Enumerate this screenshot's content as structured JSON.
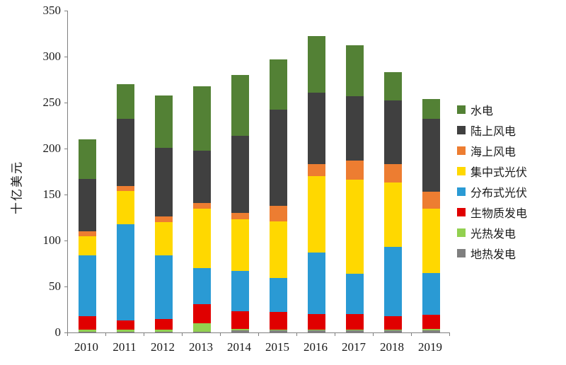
{
  "chart_data": {
    "type": "bar",
    "stacked": true,
    "title": "",
    "ylabel": "十亿美元",
    "ylim": [
      0,
      350
    ],
    "yticks": [
      0,
      50,
      100,
      150,
      200,
      250,
      300,
      350
    ],
    "categories": [
      "2010",
      "2011",
      "2012",
      "2013",
      "2014",
      "2015",
      "2016",
      "2017",
      "2018",
      "2019"
    ],
    "series": [
      {
        "name": "地热发电",
        "color": "#7f7f7f",
        "values": [
          1,
          1,
          1,
          1,
          2,
          2,
          2,
          2,
          2,
          2
        ]
      },
      {
        "name": "光热发电",
        "color": "#92d050",
        "values": [
          2,
          2,
          2,
          9,
          2,
          1,
          1,
          1,
          1,
          2
        ]
      },
      {
        "name": "生物质发电",
        "color": "#e00000",
        "values": [
          15,
          10,
          12,
          21,
          19,
          19,
          17,
          17,
          15,
          15
        ]
      },
      {
        "name": "分布式光伏",
        "color": "#2a9ad4",
        "values": [
          66,
          105,
          69,
          39,
          44,
          37,
          67,
          44,
          75,
          46
        ]
      },
      {
        "name": "集中式光伏",
        "color": "#ffd800",
        "values": [
          21,
          36,
          36,
          65,
          56,
          62,
          83,
          102,
          70,
          70
        ]
      },
      {
        "name": "海上风电",
        "color": "#ed7d31",
        "values": [
          5,
          5,
          6,
          6,
          7,
          17,
          13,
          21,
          20,
          18
        ]
      },
      {
        "name": "陆上风电",
        "color": "#404040",
        "values": [
          57,
          73,
          75,
          57,
          84,
          104,
          78,
          70,
          69,
          79
        ]
      },
      {
        "name": "水电",
        "color": "#538135",
        "values": [
          43,
          38,
          57,
          70,
          66,
          55,
          61,
          55,
          31,
          22
        ]
      }
    ],
    "legend_position": "right",
    "legend_order_top_to_bottom": [
      "水电",
      "陆上风电",
      "海上风电",
      "集中式光伏",
      "分布式光伏",
      "生物质发电",
      "光热发电",
      "地热发电"
    ],
    "grid": false
  }
}
